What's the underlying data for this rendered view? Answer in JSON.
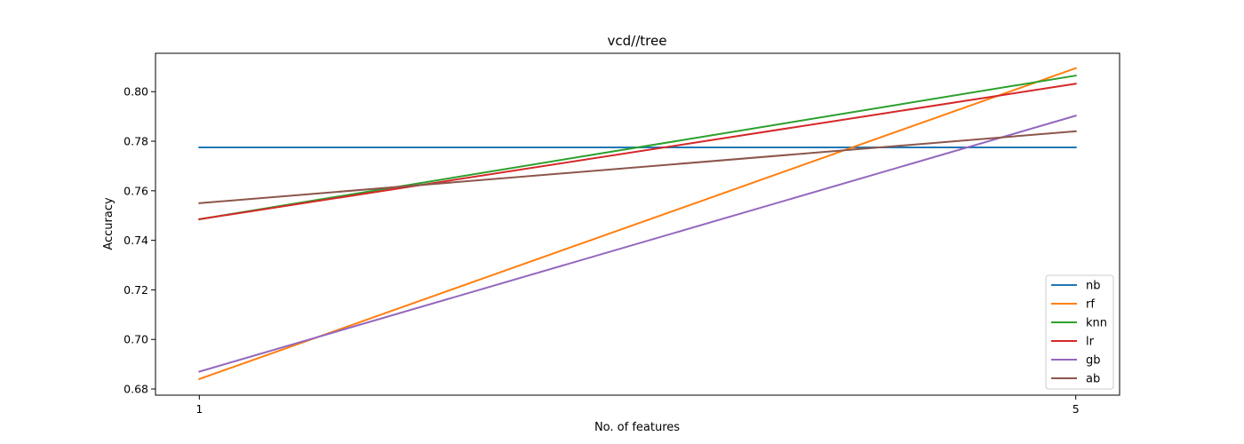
{
  "chart_data": {
    "type": "line",
    "title": "vcd//tree",
    "xlabel": "No. of features",
    "ylabel": "Accuracy",
    "x": [
      1,
      5
    ],
    "xticks": [
      "1",
      "5"
    ],
    "xlim": [
      0.8,
      5.2
    ],
    "ylim": [
      0.6775,
      0.8155
    ],
    "yticks": [
      0.68,
      0.7,
      0.72,
      0.74,
      0.76,
      0.78,
      0.8
    ],
    "yticks_labels": [
      "0.68",
      "0.70",
      "0.72",
      "0.74",
      "0.76",
      "0.78",
      "0.80"
    ],
    "grid": false,
    "legend_position": "lower-right",
    "series": [
      {
        "name": "nb",
        "color": "#1f77b4",
        "values": [
          0.7775,
          0.7775
        ]
      },
      {
        "name": "rf",
        "color": "#ff7f0e",
        "values": [
          0.684,
          0.8095
        ]
      },
      {
        "name": "knn",
        "color": "#2ca02c",
        "values": [
          0.7485,
          0.8065
        ]
      },
      {
        "name": "lr",
        "color": "#d62728",
        "values": [
          0.7485,
          0.8032
        ]
      },
      {
        "name": "gb",
        "color": "#9467bd",
        "values": [
          0.687,
          0.7903
        ]
      },
      {
        "name": "ab",
        "color": "#8c564b",
        "values": [
          0.755,
          0.784
        ]
      }
    ]
  }
}
